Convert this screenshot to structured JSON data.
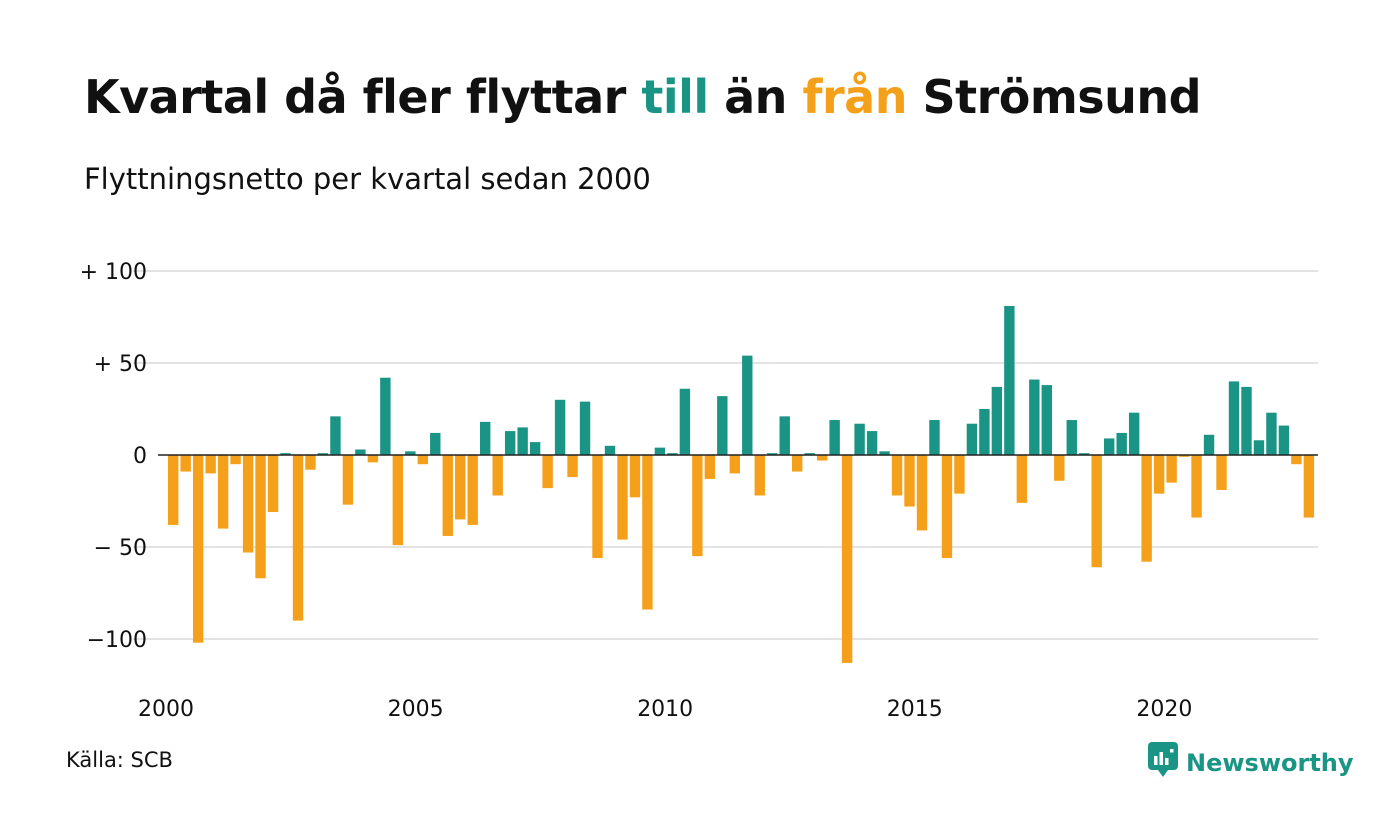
{
  "title": {
    "part1": "Kvartal då fler flyttar ",
    "till": "till",
    "part2": " än ",
    "fran": "från",
    "part3": " Strömsund"
  },
  "subtitle": "Flyttningsnetto per kvartal sedan 2000",
  "source": "Källa: SCB",
  "brand": {
    "name": "Newsworthy",
    "icon": "newsworthy-logo-icon"
  },
  "colors": {
    "positive": "#1a9485",
    "negative": "#f5a01a",
    "grid": "#e3e3e3",
    "zero_line": "#222222"
  },
  "chart_data": {
    "type": "bar",
    "title": "Kvartal då fler flyttar till än från Strömsund",
    "subtitle": "Flyttningsnetto per kvartal sedan 2000",
    "xlabel": "",
    "ylabel": "",
    "x_ticks": [
      "2000",
      "2005",
      "2010",
      "2015",
      "2020"
    ],
    "y_ticks": [
      {
        "value": 100,
        "label": "+ 100"
      },
      {
        "value": 50,
        "label": "+  50"
      },
      {
        "value": 0,
        "label": "0"
      },
      {
        "value": -50,
        "label": "− 50"
      },
      {
        "value": -100,
        "label": "−100"
      }
    ],
    "ylim": [
      -120,
      100
    ],
    "start_year": 2000,
    "grid": true,
    "values": [
      -38,
      -9,
      -102,
      -10,
      -40,
      -5,
      -53,
      -67,
      -31,
      1,
      -90,
      -8,
      1,
      21,
      -27,
      3,
      -4,
      42,
      -49,
      2,
      -5,
      12,
      -44,
      -35,
      -38,
      18,
      -22,
      13,
      15,
      7,
      -18,
      30,
      -12,
      29,
      -56,
      5,
      -46,
      -23,
      -84,
      4,
      1,
      36,
      -55,
      -13,
      32,
      -10,
      54,
      -22,
      1,
      21,
      -9,
      1,
      -3,
      19,
      -113,
      17,
      13,
      2,
      -22,
      -28,
      -41,
      19,
      -56,
      -21,
      17,
      25,
      37,
      81,
      -26,
      41,
      38,
      -14,
      19,
      1,
      -61,
      9,
      12,
      23,
      -58,
      -21,
      -15,
      -1,
      -34,
      11,
      -19,
      40,
      37,
      8,
      23,
      16,
      -5,
      -34
    ]
  }
}
